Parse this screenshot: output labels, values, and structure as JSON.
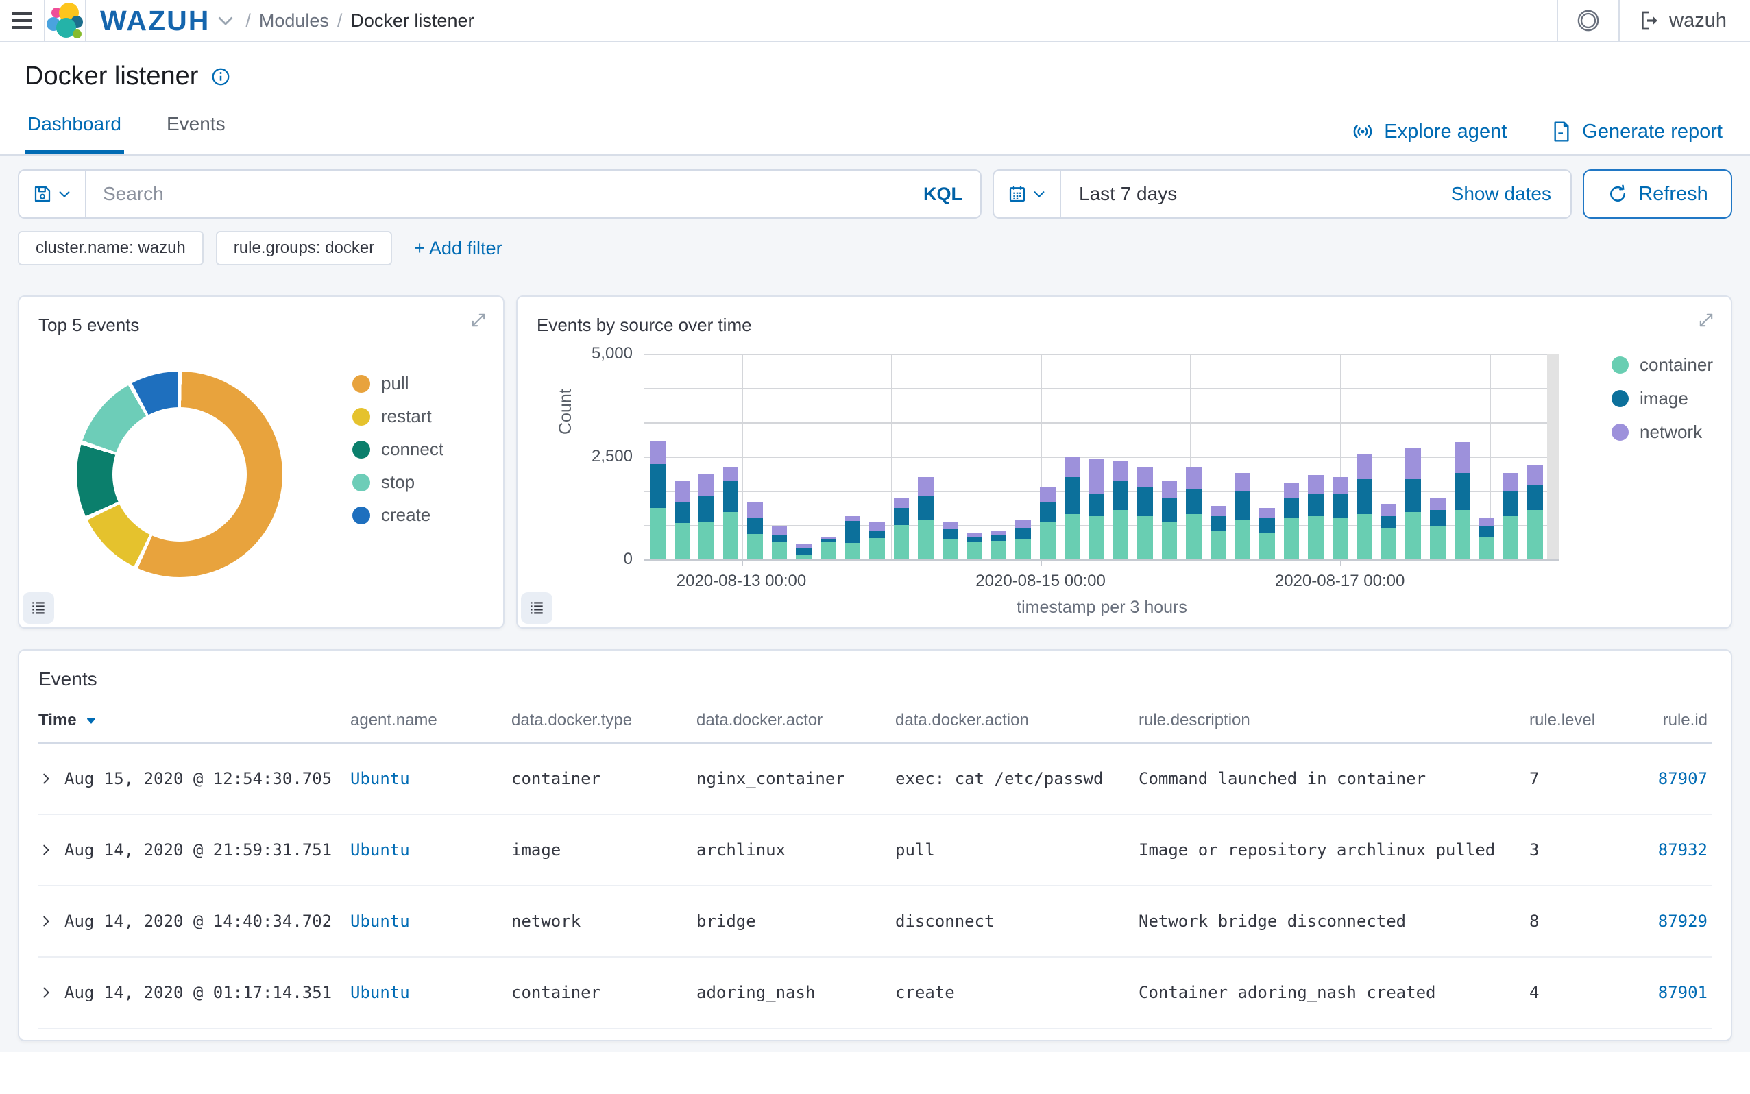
{
  "topbar": {
    "brand": "WAZUH",
    "breadcrumb": {
      "app": "Modules",
      "page": "Docker listener"
    },
    "account_label": "wazuh"
  },
  "page": {
    "title": "Docker listener"
  },
  "tabs": [
    {
      "label": "Dashboard",
      "active": true
    },
    {
      "label": "Events",
      "active": false
    }
  ],
  "actions": {
    "explore_agent": "Explore agent",
    "generate_report": "Generate report"
  },
  "search": {
    "placeholder": "Search",
    "language": "KQL"
  },
  "datepicker": {
    "value": "Last 7 days",
    "show_dates": "Show dates",
    "refresh": "Refresh"
  },
  "filters": {
    "pills": [
      "cluster.name: wazuh",
      "rule.groups: docker"
    ],
    "add_label": "+ Add filter"
  },
  "colors": {
    "primary": "#006BB4",
    "wazuh_logo": "#1565ad",
    "link": "#006BB4"
  },
  "chart_data": [
    {
      "type": "pie",
      "donut": true,
      "title": "Top 5 events",
      "labels": [
        "pull",
        "restart",
        "connect",
        "stop",
        "create"
      ],
      "values": [
        57,
        11,
        12,
        12,
        8
      ],
      "value_unit": "percent-estimated",
      "colors": [
        "#E8A33D",
        "#E5C22D",
        "#0B7F6C",
        "#6DCDB8",
        "#1E6FBE"
      ],
      "legend_position": "right",
      "start_angle_deg": 0,
      "direction": "clockwise"
    },
    {
      "type": "bar",
      "stacked": true,
      "title": "Events by source over time",
      "xlabel": "timestamp per 3 hours",
      "ylabel": "Count",
      "ylim": [
        0,
        5000
      ],
      "yticks": [
        "0",
        "2,500",
        "5,000"
      ],
      "ytick_values": [
        0,
        2500,
        5000
      ],
      "grid": true,
      "legend_position": "right",
      "xticks": [
        "2020-08-13 00:00",
        "2020-08-15 00:00",
        "2020-08-17 00:00"
      ],
      "xtick_pct": [
        10.6,
        43.3,
        76.0
      ],
      "vgrid_pct": [
        10.6,
        26.95,
        43.3,
        59.65,
        76.0,
        92.35
      ],
      "series": [
        {
          "name": "container",
          "color": "#69CEB2",
          "values": [
            1250,
            880,
            900,
            1150,
            620,
            430,
            120,
            420,
            400,
            520,
            830,
            950,
            500,
            420,
            450,
            480,
            900,
            1100,
            1050,
            1200,
            1050,
            900,
            1100,
            700,
            950,
            650,
            1000,
            1050,
            1000,
            1100,
            750,
            1150,
            800,
            1200,
            550,
            1050,
            1200
          ]
        },
        {
          "name": "image",
          "color": "#0C709B",
          "values": [
            1070,
            520,
            650,
            750,
            380,
            150,
            160,
            60,
            530,
            170,
            420,
            600,
            230,
            130,
            150,
            280,
            500,
            900,
            550,
            700,
            700,
            600,
            600,
            350,
            700,
            350,
            500,
            550,
            600,
            850,
            300,
            800,
            400,
            900,
            250,
            600,
            600
          ]
        },
        {
          "name": "network",
          "color": "#9D91DB",
          "values": [
            550,
            500,
            520,
            350,
            400,
            220,
            100,
            70,
            120,
            210,
            250,
            450,
            170,
            100,
            100,
            190,
            350,
            500,
            850,
            500,
            500,
            400,
            550,
            250,
            450,
            250,
            350,
            450,
            400,
            600,
            300,
            750,
            300,
            750,
            200,
            450,
            500
          ]
        }
      ]
    }
  ],
  "table": {
    "title": "Events",
    "columns": [
      "Time",
      "agent.name",
      "data.docker.type",
      "data.docker.actor",
      "data.docker.action",
      "rule.description",
      "rule.level",
      "rule.id"
    ],
    "rows": [
      {
        "time": "Aug 15, 2020 @ 12:54:30.705",
        "agent": "Ubuntu",
        "type": "container",
        "actor": "nginx_container",
        "action": "exec: cat /etc/passwd",
        "description": "Command launched in container",
        "level": "7",
        "id": "87907"
      },
      {
        "time": "Aug 14, 2020 @ 21:59:31.751",
        "agent": "Ubuntu",
        "type": "image",
        "actor": "archlinux",
        "action": "pull",
        "description": "Image or repository archlinux pulled",
        "level": "3",
        "id": "87932"
      },
      {
        "time": "Aug 14, 2020 @ 14:40:34.702",
        "agent": "Ubuntu",
        "type": "network",
        "actor": "bridge",
        "action": "disconnect",
        "description": "Network bridge disconnected",
        "level": "8",
        "id": "87929"
      },
      {
        "time": "Aug 14, 2020 @ 01:17:14.351",
        "agent": "Ubuntu",
        "type": "container",
        "actor": "adoring_nash",
        "action": "create",
        "description": "Container adoring_nash created",
        "level": "4",
        "id": "87901"
      }
    ]
  }
}
